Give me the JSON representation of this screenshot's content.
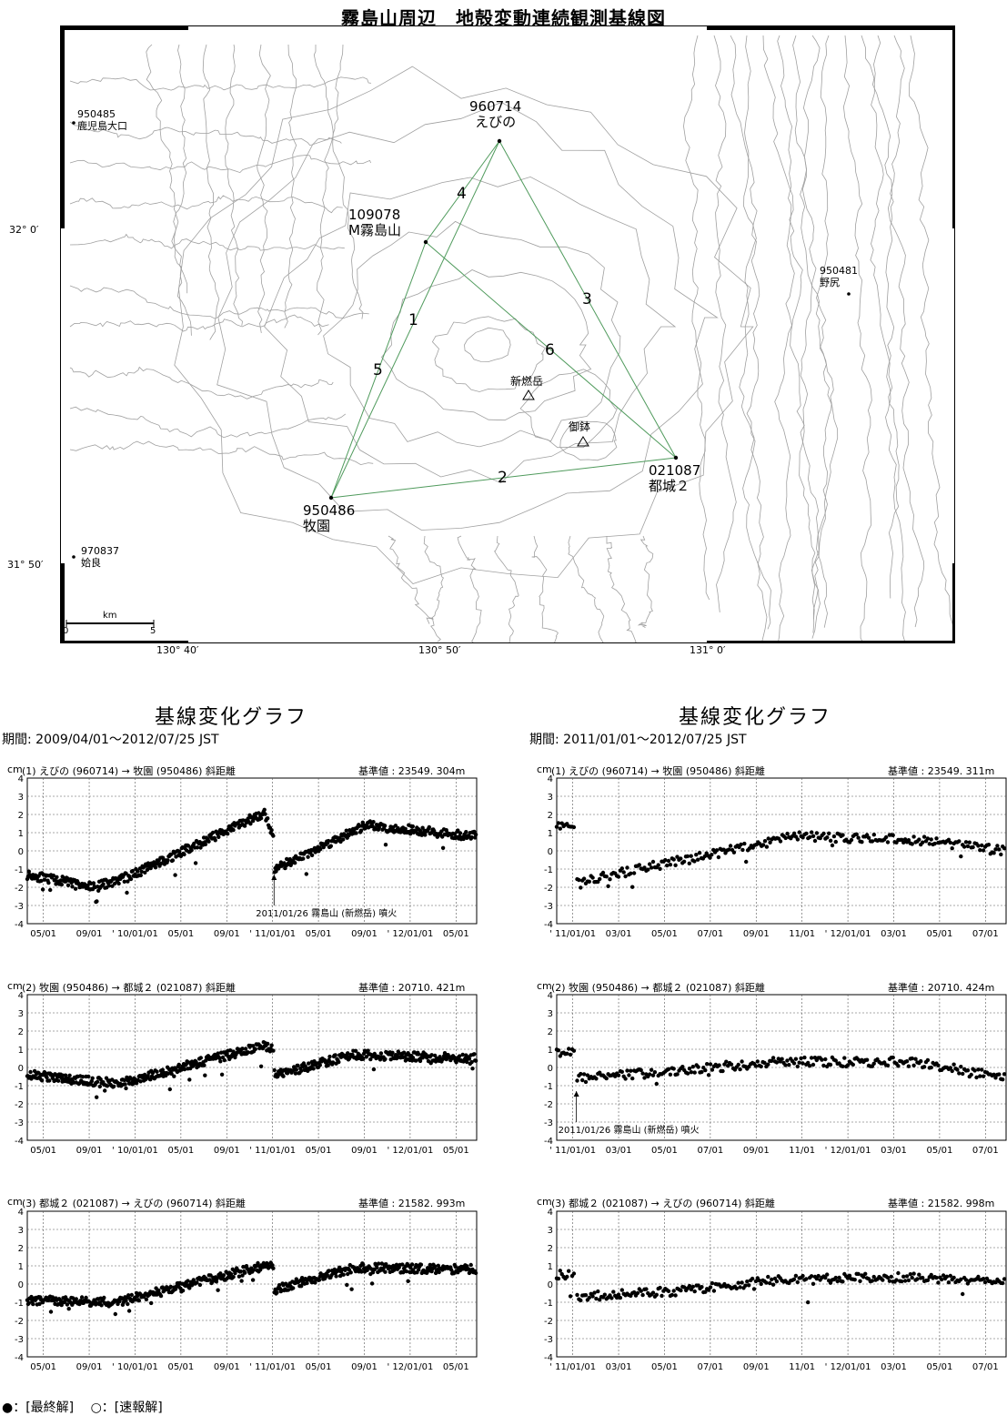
{
  "title": "霧島山周辺　地殻変動連続観測基線図",
  "map": {
    "lat_labels": [
      "32° 0′",
      "31° 50′"
    ],
    "lon_labels": [
      "130° 40′",
      "130° 50′",
      "131° 0′"
    ],
    "scale": {
      "unit": "km",
      "start": "0",
      "end": "5"
    },
    "stations": [
      {
        "id": "950485",
        "name": "鹿児島大口"
      },
      {
        "id": "960714",
        "name": "えびの"
      },
      {
        "id": "109078",
        "name": "M霧島山"
      },
      {
        "id": "950481",
        "name": "野尻"
      },
      {
        "id": "021087",
        "name": "都城２"
      },
      {
        "id": "950486",
        "name": "牧園"
      },
      {
        "id": "970837",
        "name": "姶良"
      }
    ],
    "peaks": [
      "新燃岳",
      "御鉢"
    ],
    "baseline_numbers": [
      "1",
      "2",
      "3",
      "4",
      "5",
      "6"
    ],
    "colors": {
      "baseline": "#4f9a5c",
      "contour": "#9a9a9a"
    }
  },
  "panels": [
    {
      "title": "基線変化グラフ",
      "period": "期間:  2009/04/01～2012/07/25  JST",
      "x_ticks": [
        "05/01",
        "09/01",
        "' 10/01/01",
        "05/01",
        "09/01",
        "' 11/01/01",
        "05/01",
        "09/01",
        "' 12/01/01",
        "05/01"
      ],
      "charts": [
        {
          "unit": "cm",
          "label": "(1)  えびの (960714) → 牧園 (950486)    斜距離",
          "ref": "基準値 : 23549. 304m",
          "annotation": "2011/01/26   霧島山 (新燃岳)  噴火"
        },
        {
          "unit": "cm",
          "label": "(2)  牧園 (950486) → 都城２ (021087)    斜距離",
          "ref": "基準値 : 20710. 421m",
          "annotation": ""
        },
        {
          "unit": "cm",
          "label": "(3)  都城２ (021087) → えびの (960714)    斜距離",
          "ref": "基準値 : 21582. 993m",
          "annotation": ""
        }
      ]
    },
    {
      "title": "基線変化グラフ",
      "period": "期間:  2011/01/01～2012/07/25  JST",
      "x_ticks": [
        "' 11/01/01",
        "03/01",
        "05/01",
        "07/01",
        "09/01",
        "11/01",
        "' 12/01/01",
        "03/01",
        "05/01",
        "07/01"
      ],
      "charts": [
        {
          "unit": "cm",
          "label": "(1)  えびの (960714) → 牧園 (950486)    斜距離",
          "ref": "基準値 : 23549. 311m",
          "annotation": ""
        },
        {
          "unit": "cm",
          "label": "(2)  牧園 (950486) → 都城２ (021087)    斜距離",
          "ref": "基準値 : 20710. 424m",
          "annotation": "2011/01/26   霧島山 (新燃岳)  噴火"
        },
        {
          "unit": "cm",
          "label": "(3)  都城２ (021087) → えびの (960714)    斜距離",
          "ref": "基準値 : 21582. 998m",
          "annotation": ""
        }
      ]
    }
  ],
  "y_ticks": [
    "4",
    "3",
    "2",
    "1",
    "0",
    "-1",
    "-2",
    "-3",
    "-4"
  ],
  "legend": "●：[最終解]　 ○：[速報解]",
  "chart_data": [
    {
      "type": "scatter",
      "id": "p1-1",
      "unit": "cm",
      "ylim": [
        -4,
        4
      ],
      "x_range": [
        "2009-04-01",
        "2012-07-25"
      ],
      "grid": true,
      "series": [
        {
          "x": [
            "2009-04-01",
            "2009-10-01",
            "2010-01-01",
            "2010-12-31",
            "2011-01-26",
            "2011-01-27",
            "2011-10-01",
            "2012-07-25"
          ],
          "y": [
            -1.3,
            -2.0,
            -1.4,
            2.1,
            0.5,
            -1.0,
            1.4,
            0.8
          ]
        }
      ]
    },
    {
      "type": "scatter",
      "id": "p1-2",
      "unit": "cm",
      "ylim": [
        -4,
        4
      ],
      "x_range": [
        "2009-04-01",
        "2012-07-25"
      ],
      "grid": true,
      "series": [
        {
          "x": [
            "2009-04-01",
            "2009-12-01",
            "2010-12-31",
            "2011-01-26",
            "2011-01-27",
            "2011-09-01",
            "2012-07-25"
          ],
          "y": [
            -0.4,
            -0.9,
            1.2,
            0.9,
            -0.4,
            0.7,
            0.5
          ]
        }
      ]
    },
    {
      "type": "scatter",
      "id": "p1-3",
      "unit": "cm",
      "ylim": [
        -4,
        4
      ],
      "x_range": [
        "2009-04-01",
        "2012-07-25"
      ],
      "grid": true,
      "series": [
        {
          "x": [
            "2009-04-01",
            "2009-12-01",
            "2010-12-31",
            "2011-01-26",
            "2011-01-27",
            "2011-09-01",
            "2012-07-25"
          ],
          "y": [
            -0.9,
            -1.0,
            1.0,
            0.9,
            -0.3,
            0.9,
            0.8
          ]
        }
      ]
    },
    {
      "type": "scatter",
      "id": "p2-1",
      "unit": "cm",
      "ylim": [
        -4,
        4
      ],
      "x_range": [
        "2011-01-01",
        "2012-07-25"
      ],
      "grid": true,
      "series": [
        {
          "x": [
            "2011-01-01",
            "2011-01-25",
            "2011-01-27",
            "2011-06-01",
            "2011-11-01",
            "2012-04-01",
            "2012-07-25"
          ],
          "y": [
            1.3,
            1.3,
            -1.7,
            -0.6,
            0.8,
            0.6,
            0.0
          ]
        }
      ]
    },
    {
      "type": "scatter",
      "id": "p2-2",
      "unit": "cm",
      "ylim": [
        -4,
        4
      ],
      "x_range": [
        "2011-01-01",
        "2012-07-25"
      ],
      "grid": true,
      "series": [
        {
          "x": [
            "2011-01-01",
            "2011-01-25",
            "2011-01-27",
            "2011-06-01",
            "2011-10-01",
            "2012-04-01",
            "2012-07-25"
          ],
          "y": [
            0.8,
            0.8,
            -0.6,
            -0.2,
            0.3,
            0.3,
            -0.6
          ]
        }
      ]
    },
    {
      "type": "scatter",
      "id": "p2-3",
      "unit": "cm",
      "ylim": [
        -4,
        4
      ],
      "x_range": [
        "2011-01-01",
        "2012-07-25"
      ],
      "grid": true,
      "series": [
        {
          "x": [
            "2011-01-01",
            "2011-01-25",
            "2011-01-27",
            "2011-06-01",
            "2011-10-01",
            "2012-04-01",
            "2012-07-25"
          ],
          "y": [
            0.5,
            0.5,
            -0.7,
            -0.4,
            0.2,
            0.4,
            0.1
          ]
        }
      ]
    }
  ]
}
